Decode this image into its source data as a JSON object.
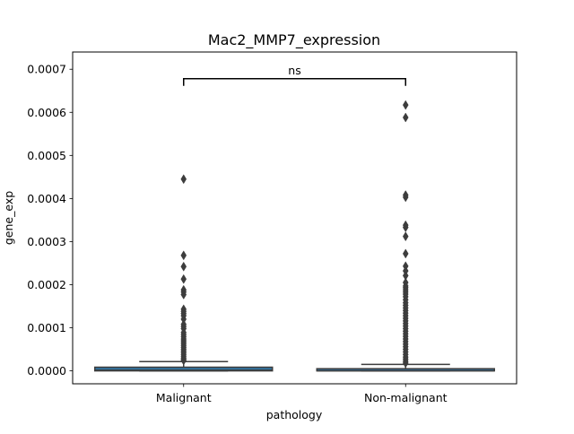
{
  "chart_data": {
    "type": "box",
    "title": "Mac2_MMP7_expression",
    "xlabel": "pathology",
    "ylabel": "gene_exp",
    "categories": [
      "Malignant",
      "Non-malignant"
    ],
    "ylim": [
      -3e-05,
      0.00074
    ],
    "yticks": [
      0.0,
      0.0001,
      0.0002,
      0.0003,
      0.0004,
      0.0005,
      0.0006,
      0.0007
    ],
    "ytick_labels": [
      "0.0000",
      "0.0001",
      "0.0002",
      "0.0003",
      "0.0004",
      "0.0005",
      "0.0006",
      "0.0007"
    ],
    "grid": false,
    "colors": {
      "box_fill": "#3274a1",
      "line": "#3d3d3d",
      "axis": "#000000"
    },
    "boxes": [
      {
        "category": "Malignant",
        "q1": 0.0,
        "median": 1.5e-06,
        "q3": 8.5e-06,
        "whisker_low": 0.0,
        "whisker_high": 2.15e-05,
        "outliers": [
          0.000445,
          0.000268,
          0.000242,
          0.000213,
          0.000188,
          0.000183,
          0.000177,
          0.000143,
          0.000138,
          0.000133,
          0.000128,
          0.00012,
          0.000108,
          0.000103,
          9.8e-05,
          8.9e-05,
          8.4e-05,
          7.9e-05,
          7.4e-05,
          7e-05,
          6.6e-05,
          6.2e-05,
          5.8e-05,
          5.4e-05,
          5e-05,
          4.6e-05,
          4.2e-05,
          3.8e-05,
          3.4e-05,
          3e-05,
          2.7e-05,
          2.4e-05
        ]
      },
      {
        "category": "Non-malignant",
        "q1": 0.0,
        "median": 3e-07,
        "q3": 5e-06,
        "whisker_low": 0.0,
        "whisker_high": 1.5e-05,
        "outliers": [
          0.000617,
          0.000588,
          0.000408,
          0.000403,
          0.000338,
          0.000333,
          0.000312,
          0.000272,
          0.000243,
          0.000232,
          0.000221,
          0.000205,
          0.000197,
          0.000193,
          0.000188,
          0.000183,
          0.000178,
          0.000172,
          0.000165,
          0.000158,
          0.000152,
          0.000146,
          0.00014,
          0.000134,
          0.000128,
          0.000122,
          0.000116,
          0.00011,
          0.000104,
          9.8e-05,
          9.2e-05,
          8.6e-05,
          8e-05,
          7.4e-05,
          6.8e-05,
          6.2e-05,
          5.6e-05,
          5e-05,
          4.4e-05,
          3.8e-05,
          3.2e-05,
          2.7e-05,
          2.2e-05,
          1.8e-05
        ]
      }
    ],
    "annotations": [
      {
        "type": "significance-bracket",
        "from": "Malignant",
        "to": "Non-malignant",
        "y": 0.000678,
        "label": "ns"
      }
    ]
  }
}
